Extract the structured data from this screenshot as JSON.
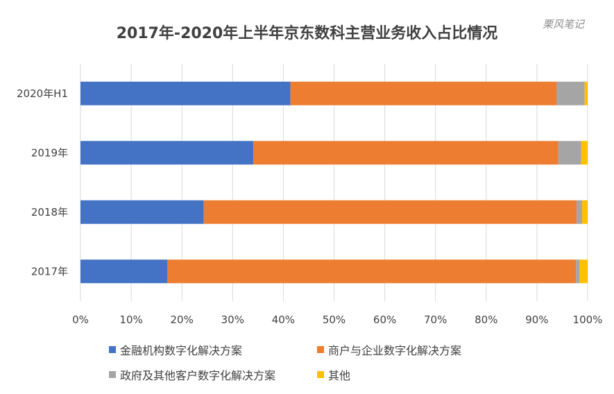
{
  "watermark": "栗风笔记",
  "chart_data": {
    "type": "bar",
    "orientation": "horizontal",
    "stacked": "percent",
    "title": "2017年-2020年上半年京东数科主营业务收入占比情况",
    "categories": [
      "2020年H1",
      "2019年",
      "2018年",
      "2017年"
    ],
    "series": [
      {
        "name": "金融机构数字化解决方案",
        "color": "#4472C4",
        "values": [
          41.4,
          34.1,
          24.3,
          17.1
        ]
      },
      {
        "name": "商户与企业数字化解决方案",
        "color": "#ED7D31",
        "values": [
          52.5,
          60.1,
          73.5,
          80.6
        ]
      },
      {
        "name": "政府及其他客户数字化解决方案",
        "color": "#A5A5A5",
        "values": [
          5.5,
          4.5,
          1.1,
          0.7
        ]
      },
      {
        "name": "其他",
        "color": "#FFC000",
        "values": [
          0.6,
          1.3,
          1.1,
          1.6
        ]
      }
    ],
    "xticks": [
      "0%",
      "10%",
      "20%",
      "30%",
      "40%",
      "50%",
      "60%",
      "70%",
      "80%",
      "90%",
      "100%"
    ],
    "xlim": [
      0,
      100
    ],
    "grid": true,
    "legend_position": "bottom"
  }
}
